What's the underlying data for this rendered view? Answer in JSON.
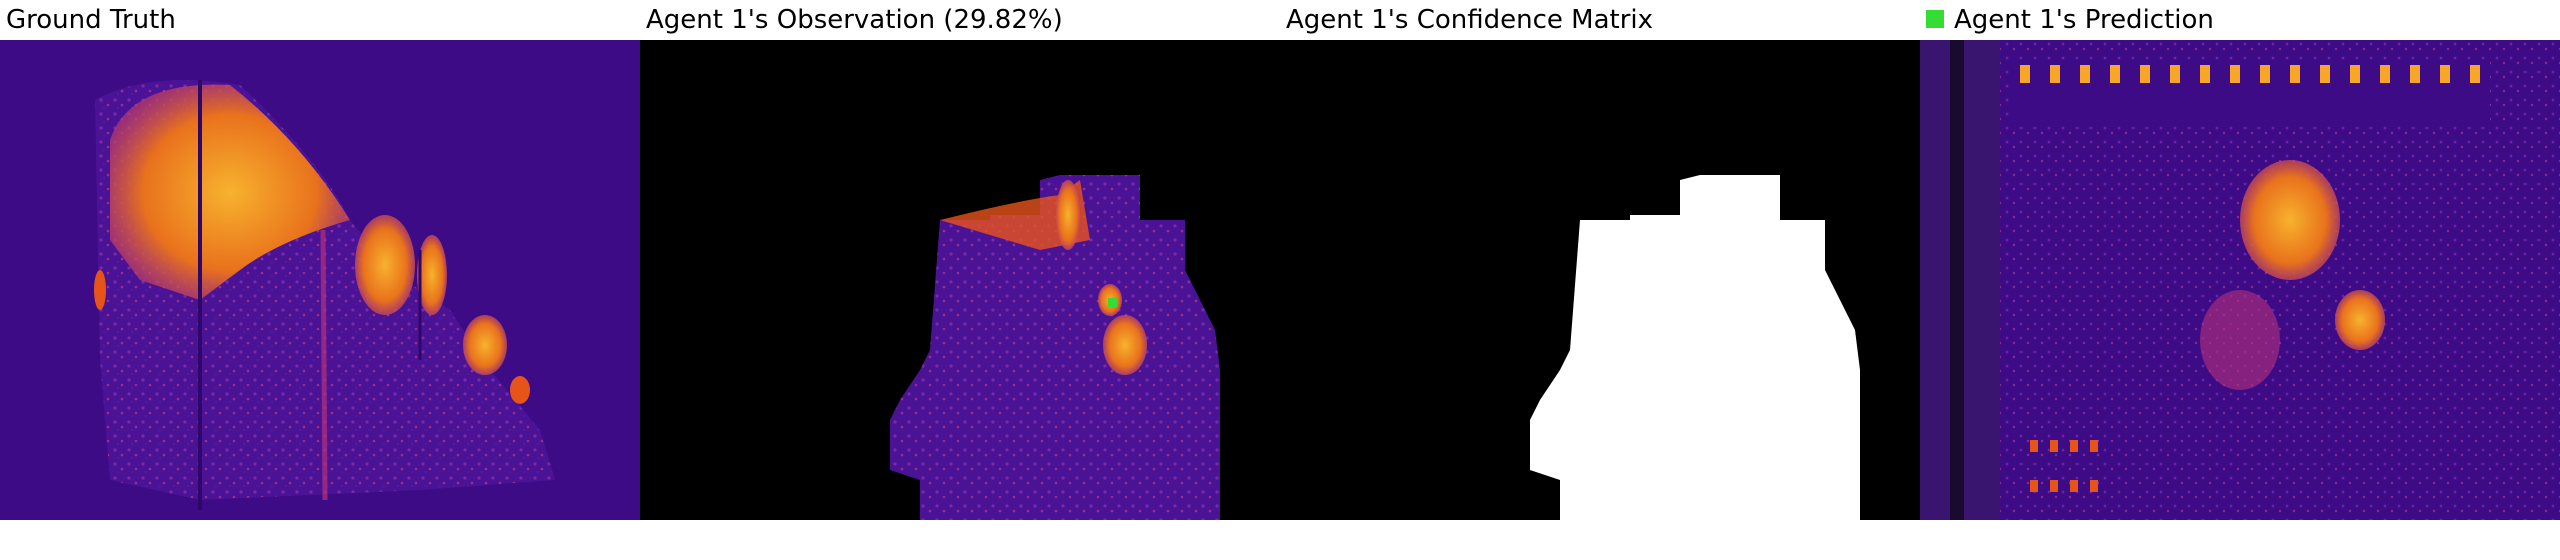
{
  "panels": [
    {
      "title": "Ground Truth"
    },
    {
      "title": "Agent 1's Observation (29.82%)"
    },
    {
      "title": "Agent 1's Confidence Matrix"
    },
    {
      "title": "Agent 1's Prediction"
    }
  ],
  "colors": {
    "background_field": "#3d0b86",
    "background_dark": "#000000",
    "hot": "#f7a62a",
    "warm": "#e7541a",
    "magenta": "#b5307a",
    "confidence_fill": "#ffffff",
    "marker": "#33dd33"
  },
  "legend": {
    "swatch_color": "#33dd33"
  }
}
